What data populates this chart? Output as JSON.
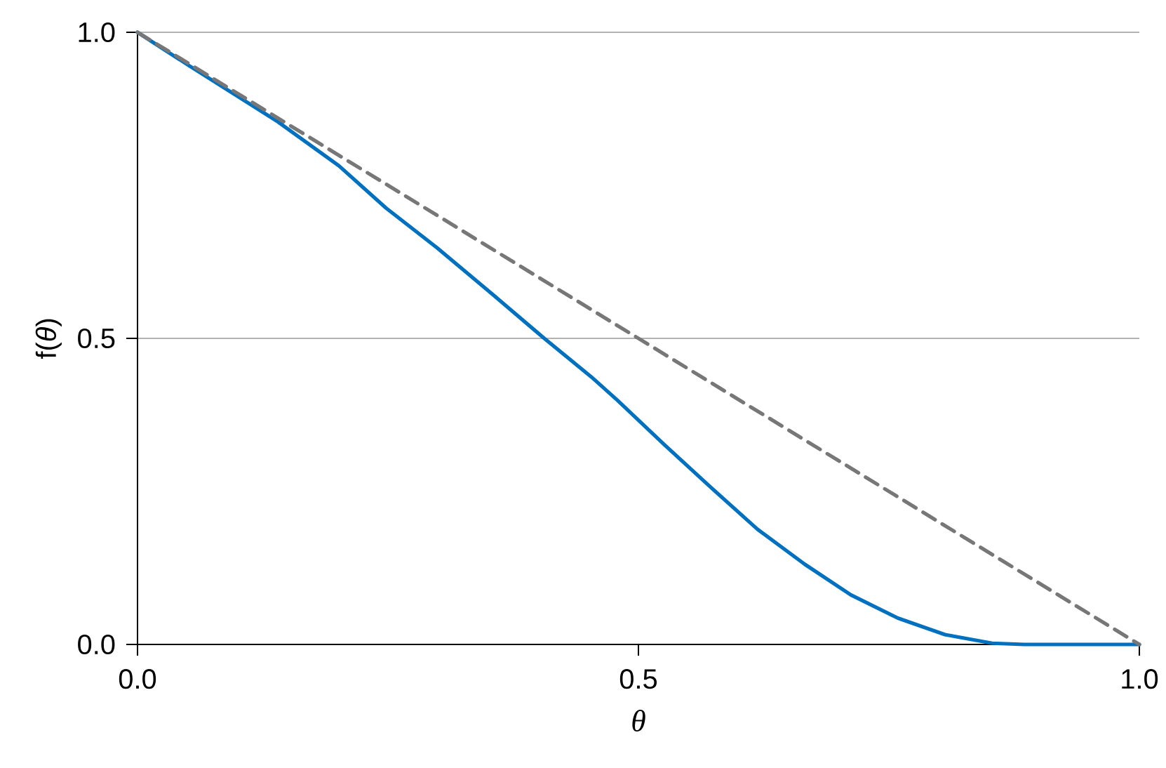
{
  "chart_data": {
    "type": "line",
    "xlabel": "θ",
    "ylabel": "f(*θ*)",
    "xlim": [
      0,
      1
    ],
    "ylim": [
      0,
      1
    ],
    "xticks": [
      {
        "value": 0,
        "label": "0.0"
      },
      {
        "value": 0.5,
        "label": "0.5"
      },
      {
        "value": 1,
        "label": "1.0"
      }
    ],
    "yticks": [
      {
        "value": 0,
        "label": "0.0"
      },
      {
        "value": 0.5,
        "label": "0.5"
      },
      {
        "value": 1,
        "label": "1.0"
      }
    ],
    "grid": "y",
    "series": [
      {
        "color": "#0070c0",
        "line_style": "solid",
        "x": [
          0,
          0.051,
          0.14,
          0.201,
          0.248,
          0.299,
          0.355,
          0.406,
          0.453,
          0.479,
          0.526,
          0.572,
          0.619,
          0.666,
          0.712,
          0.759,
          0.806,
          0.853,
          0.885,
          1
        ],
        "values": [
          1,
          0.946,
          0.854,
          0.782,
          0.713,
          0.648,
          0.571,
          0.5,
          0.437,
          0.399,
          0.326,
          0.257,
          0.188,
          0.131,
          0.081,
          0.043,
          0.016,
          0.002,
          0,
          0
        ]
      },
      {
        "color": "#777777",
        "line_style": "dashed",
        "x": [
          0,
          1
        ],
        "values": [
          1,
          0
        ]
      }
    ]
  }
}
